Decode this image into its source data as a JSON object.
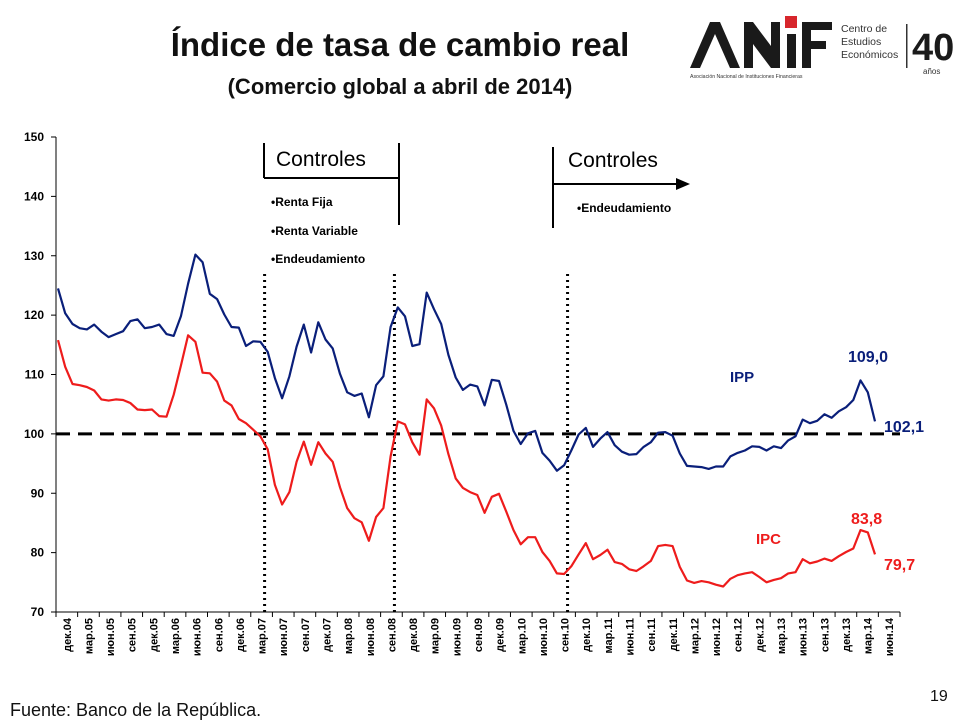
{
  "slide": {
    "title": "Índice de tasa de cambio real",
    "subtitle": "(Comercio global a abril de 2014)",
    "source": "Fuente: Banco de la República.",
    "page_number": "19"
  },
  "logo": {
    "brand": "ANIF",
    "tagline": "Asociación Nacional de Instituciones Financieras",
    "center_lines": [
      "Centro de",
      "Estudios",
      "Económicos"
    ],
    "anniversary": "40",
    "anniversary_sub": "años"
  },
  "annotations": {
    "controls_1": {
      "title": "Controles",
      "items": [
        "•Renta Fija",
        "•Renta Variable",
        "•Endeudamiento"
      ]
    },
    "controls_2": {
      "title": "Controles",
      "items": [
        "•Endeudamiento"
      ]
    },
    "ipp_last": "102,1",
    "ipp_peak": "109,0",
    "ipc_last": "79,7",
    "ipc_peak": "83,8"
  },
  "chart_data": {
    "type": "line",
    "ylim": [
      70,
      150
    ],
    "yticks": [
      70,
      80,
      90,
      100,
      110,
      120,
      130,
      140,
      150
    ],
    "reference_line": 100,
    "xtick_labels": [
      "дек.04",
      "мар.05",
      "июн.05",
      "сен.05",
      "дек.05",
      "мар.06",
      "июн.06",
      "сен.06",
      "дек.06",
      "мар.07",
      "июн.07",
      "сен.07",
      "дек.07",
      "мар.08",
      "июн.08",
      "сен.08",
      "дек.08",
      "мар.09",
      "июн.09",
      "сен.09",
      "дек.09",
      "мар.10",
      "июн.10",
      "сен.10",
      "дек.10",
      "мар.11",
      "июн.11",
      "сен.11",
      "дек.11",
      "мар.12",
      "июн.12",
      "сен.12",
      "дек.12",
      "мар.13",
      "июн.13",
      "сен.13",
      "дек.13",
      "мар.14",
      "июн.14"
    ],
    "vertical_markers": [
      "мар.07",
      "сен.08",
      "сен.10"
    ],
    "series": [
      {
        "name": "IPP",
        "color": "#0a1f7a",
        "values": [
          124.5,
          120.3,
          118.5,
          117.8,
          117.6,
          118.4,
          117.2,
          116.3,
          116.8,
          117.3,
          119.0,
          119.3,
          117.8,
          118.0,
          118.4,
          116.8,
          116.5,
          119.8,
          125.3,
          130.2,
          128.9,
          123.6,
          122.7,
          120.1,
          118.0,
          117.9,
          114.8,
          115.6,
          115.5,
          113.8,
          109.4,
          106.0,
          109.7,
          114.7,
          118.4,
          113.7,
          118.8,
          115.9,
          114.4,
          110.1,
          107.0,
          106.4,
          106.8,
          102.8,
          108.2,
          109.7,
          118.0,
          121.3,
          119.8,
          114.8,
          115.1,
          123.8,
          121.0,
          118.5,
          113.3,
          109.5,
          107.4,
          108.3,
          108.0,
          104.8,
          109.1,
          108.9,
          104.9,
          100.5,
          98.3,
          100.1,
          100.5,
          96.8,
          95.5,
          93.8,
          94.7,
          97.2,
          99.9,
          101.0,
          97.8,
          99.2,
          100.3,
          98.1,
          97.0,
          96.5,
          96.6,
          97.8,
          98.6,
          100.2,
          100.3,
          99.7,
          96.7,
          94.6,
          94.5,
          94.4,
          94.1,
          94.5,
          94.5,
          96.2,
          96.8,
          97.2,
          97.9,
          97.8,
          97.2,
          97.9,
          97.6,
          98.9,
          99.6,
          102.4,
          101.8,
          102.2,
          103.3,
          102.7,
          103.8,
          104.5,
          105.7,
          109.0,
          107.0,
          102.1
        ]
      },
      {
        "name": "IPC",
        "color": "#ee1c1c",
        "values": [
          115.8,
          111.3,
          108.4,
          108.2,
          107.9,
          107.3,
          105.8,
          105.6,
          105.8,
          105.7,
          105.2,
          104.1,
          104.0,
          104.1,
          103.0,
          102.9,
          106.6,
          111.5,
          116.6,
          115.5,
          110.3,
          110.2,
          108.8,
          105.6,
          104.8,
          102.5,
          101.8,
          100.7,
          99.6,
          97.4,
          91.4,
          88.1,
          90.2,
          95.3,
          98.7,
          94.8,
          98.6,
          96.7,
          95.3,
          91.0,
          87.5,
          85.8,
          85.1,
          82.0,
          86.0,
          87.5,
          96.2,
          102.1,
          101.6,
          98.6,
          96.5,
          105.8,
          104.3,
          101.4,
          96.6,
          92.5,
          90.9,
          90.2,
          89.7,
          86.7,
          89.4,
          89.9,
          86.9,
          83.8,
          81.4,
          82.6,
          82.6,
          80.1,
          78.6,
          76.5,
          76.4,
          77.7,
          79.7,
          81.6,
          78.9,
          79.6,
          80.5,
          78.4,
          78.1,
          77.2,
          76.9,
          77.7,
          78.6,
          81.1,
          81.3,
          81.1,
          77.6,
          75.3,
          74.9,
          75.2,
          75.0,
          74.6,
          74.3,
          75.6,
          76.2,
          76.5,
          76.7,
          75.9,
          75.0,
          75.4,
          75.7,
          76.5,
          76.7,
          78.9,
          78.2,
          78.5,
          79.0,
          78.6,
          79.4,
          80.1,
          80.7,
          83.8,
          83.4,
          79.7
        ]
      }
    ]
  }
}
